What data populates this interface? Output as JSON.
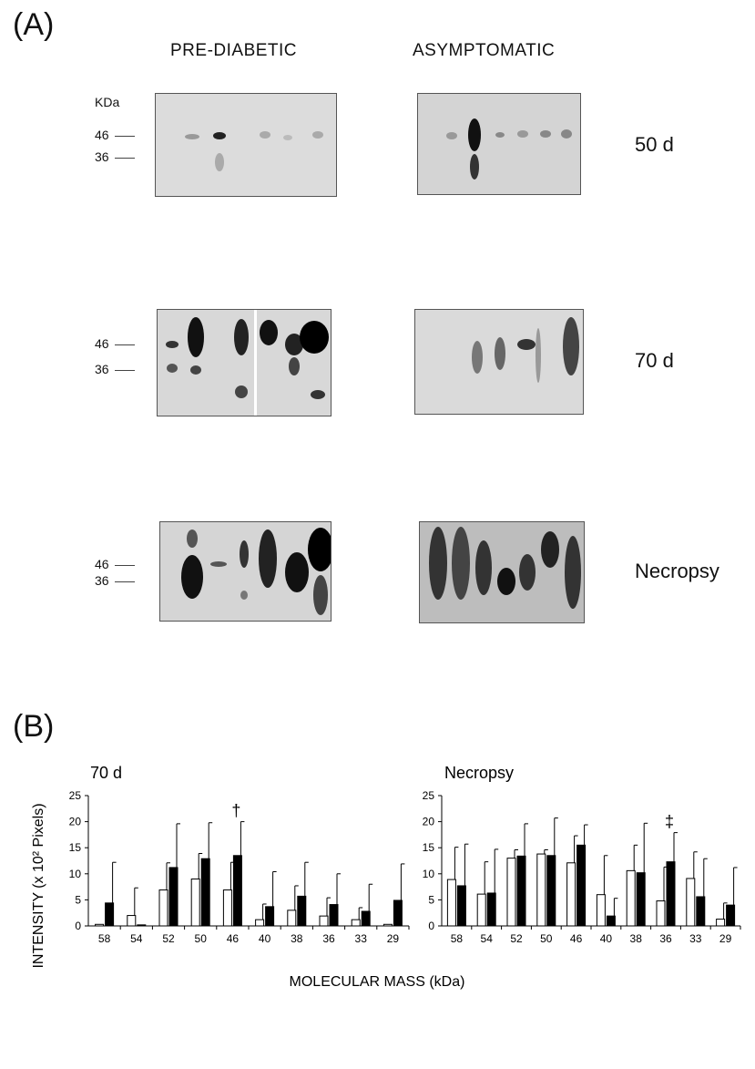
{
  "panel_a": {
    "label": "(A)",
    "columns": [
      "PRE-DIABETIC",
      "ASYMPTOMATIC"
    ],
    "marker_unit": "KDa",
    "markers": [
      "46",
      "36"
    ],
    "rows": [
      "50 d",
      "70 d",
      "Necropsy"
    ]
  },
  "panel_b": {
    "label": "(B)"
  },
  "chart_data": [
    {
      "type": "bar",
      "title": "70 d",
      "ylabel": "INTENSITY (x 10² Pixels)",
      "xlabel": "MOLECULAR MASS (kDa)",
      "ylim": [
        0,
        25
      ],
      "yticks": [
        "0",
        "5",
        "10",
        "15",
        "20",
        "25"
      ],
      "categories": [
        "58",
        "54",
        "52",
        "50",
        "46",
        "40",
        "38",
        "36",
        "33",
        "29"
      ],
      "series": [
        {
          "values": [
            0.3,
            2.0,
            6.9,
            9.0,
            6.9,
            1.2,
            3.0,
            1.9,
            1.2,
            0.3
          ],
          "errors": [
            0,
            5.3,
            5.2,
            4.9,
            5.3,
            3.0,
            4.7,
            3.5,
            2.3,
            0
          ],
          "fill": "#ffffff"
        },
        {
          "values": [
            4.4,
            0.2,
            11.2,
            12.9,
            13.5,
            3.7,
            5.7,
            4.1,
            2.8,
            4.9
          ],
          "errors": [
            7.8,
            0,
            8.4,
            6.9,
            6.5,
            6.7,
            6.5,
            5.9,
            5.2,
            7.0
          ],
          "fill": "#000000"
        }
      ],
      "annotations": [
        {
          "category": "46",
          "text": "†"
        }
      ]
    },
    {
      "type": "bar",
      "title": "Necropsy",
      "ylim": [
        0,
        25
      ],
      "yticks": [
        "0",
        "5",
        "10",
        "15",
        "20",
        "25"
      ],
      "categories": [
        "58",
        "54",
        "52",
        "50",
        "46",
        "40",
        "38",
        "36",
        "33",
        "29"
      ],
      "series": [
        {
          "values": [
            8.9,
            6.1,
            13.0,
            13.8,
            12.1,
            6.0,
            10.6,
            4.8,
            9.1,
            1.3
          ],
          "errors": [
            6.2,
            6.2,
            1.6,
            0.8,
            5.2,
            7.5,
            4.9,
            6.5,
            5.1,
            3.1
          ],
          "fill": "#ffffff"
        },
        {
          "values": [
            7.7,
            6.3,
            13.4,
            13.5,
            15.5,
            1.9,
            10.2,
            12.3,
            5.6,
            4.0
          ],
          "errors": [
            8.0,
            8.4,
            6.2,
            7.2,
            3.9,
            3.4,
            9.5,
            5.6,
            7.3,
            7.2
          ],
          "fill": "#000000"
        }
      ],
      "annotations": [
        {
          "category": "36",
          "text": "‡"
        }
      ]
    }
  ]
}
